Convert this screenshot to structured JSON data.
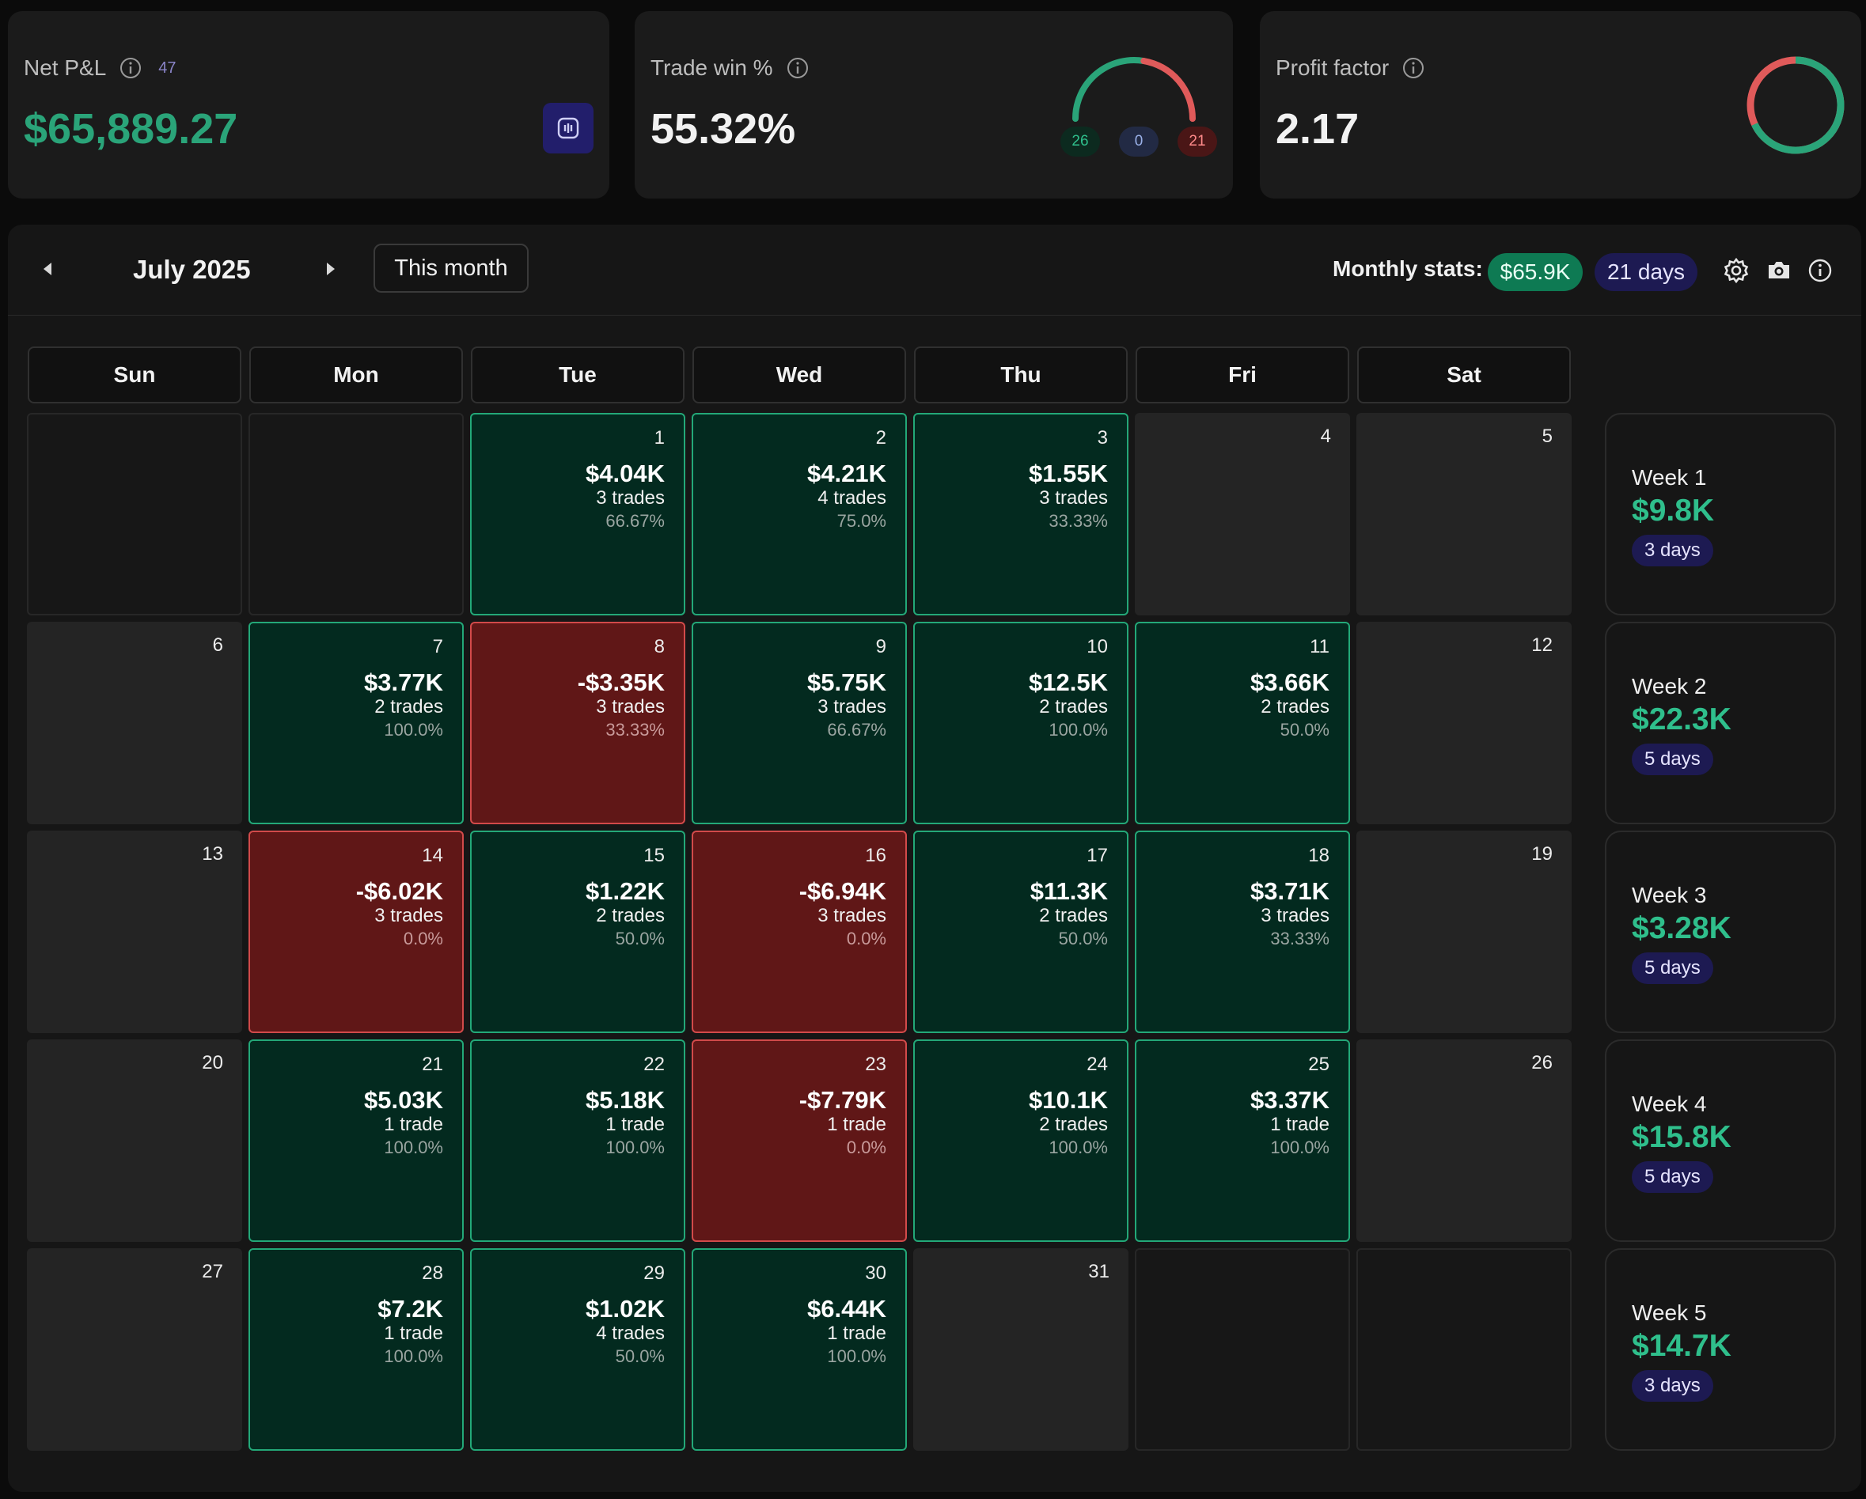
{
  "net_pnl": {
    "title": "Net P&L",
    "count": "47",
    "value": "$65,889.27"
  },
  "trade_win": {
    "title": "Trade win %",
    "value": "55.32%",
    "wins": "26",
    "breakeven": "0",
    "losses": "21",
    "win_fraction": 0.5532,
    "colors": {
      "win": "#2aa479",
      "loss": "#e05a5a",
      "neutral": "#2c2c3a"
    }
  },
  "profit_factor": {
    "title": "Profit factor",
    "value": "2.17",
    "gross_profit_fraction": 0.68
  },
  "calendar": {
    "month_label": "July 2025",
    "this_month_label": "This month",
    "monthly_stats_label": "Monthly stats:",
    "monthly_pnl": "$65.9K",
    "monthly_days": "21 days",
    "weekdays": [
      "Sun",
      "Mon",
      "Tue",
      "Wed",
      "Thu",
      "Fri",
      "Sat"
    ],
    "weeks": [
      {
        "label": "Week 1",
        "value": "$9.8K",
        "days": "3 days",
        "cells": [
          {
            "type": "empty"
          },
          {
            "type": "empty"
          },
          {
            "type": "profit",
            "day": "1",
            "pnl": "$4.04K",
            "trades": "3 trades",
            "pct": "66.67%"
          },
          {
            "type": "profit",
            "day": "2",
            "pnl": "$4.21K",
            "trades": "4 trades",
            "pct": "75.0%"
          },
          {
            "type": "profit",
            "day": "3",
            "pnl": "$1.55K",
            "trades": "3 trades",
            "pct": "33.33%"
          },
          {
            "type": "noday",
            "day": "4"
          },
          {
            "type": "noday",
            "day": "5"
          }
        ]
      },
      {
        "label": "Week 2",
        "value": "$22.3K",
        "days": "5 days",
        "cells": [
          {
            "type": "noday",
            "day": "6"
          },
          {
            "type": "profit",
            "day": "7",
            "pnl": "$3.77K",
            "trades": "2 trades",
            "pct": "100.0%"
          },
          {
            "type": "loss",
            "day": "8",
            "pnl": "-$3.35K",
            "trades": "3 trades",
            "pct": "33.33%"
          },
          {
            "type": "profit",
            "day": "9",
            "pnl": "$5.75K",
            "trades": "3 trades",
            "pct": "66.67%"
          },
          {
            "type": "profit",
            "day": "10",
            "pnl": "$12.5K",
            "trades": "2 trades",
            "pct": "100.0%"
          },
          {
            "type": "profit",
            "day": "11",
            "pnl": "$3.66K",
            "trades": "2 trades",
            "pct": "50.0%"
          },
          {
            "type": "noday",
            "day": "12"
          }
        ]
      },
      {
        "label": "Week 3",
        "value": "$3.28K",
        "days": "5 days",
        "cells": [
          {
            "type": "noday",
            "day": "13"
          },
          {
            "type": "loss",
            "day": "14",
            "pnl": "-$6.02K",
            "trades": "3 trades",
            "pct": "0.0%"
          },
          {
            "type": "profit",
            "day": "15",
            "pnl": "$1.22K",
            "trades": "2 trades",
            "pct": "50.0%"
          },
          {
            "type": "loss",
            "day": "16",
            "pnl": "-$6.94K",
            "trades": "3 trades",
            "pct": "0.0%"
          },
          {
            "type": "profit",
            "day": "17",
            "pnl": "$11.3K",
            "trades": "2 trades",
            "pct": "50.0%"
          },
          {
            "type": "profit",
            "day": "18",
            "pnl": "$3.71K",
            "trades": "3 trades",
            "pct": "33.33%"
          },
          {
            "type": "noday",
            "day": "19"
          }
        ]
      },
      {
        "label": "Week 4",
        "value": "$15.8K",
        "days": "5 days",
        "cells": [
          {
            "type": "noday",
            "day": "20"
          },
          {
            "type": "profit",
            "day": "21",
            "pnl": "$5.03K",
            "trades": "1 trade",
            "pct": "100.0%"
          },
          {
            "type": "profit",
            "day": "22",
            "pnl": "$5.18K",
            "trades": "1 trade",
            "pct": "100.0%"
          },
          {
            "type": "loss",
            "day": "23",
            "pnl": "-$7.79K",
            "trades": "1 trade",
            "pct": "0.0%"
          },
          {
            "type": "profit",
            "day": "24",
            "pnl": "$10.1K",
            "trades": "2 trades",
            "pct": "100.0%"
          },
          {
            "type": "profit",
            "day": "25",
            "pnl": "$3.37K",
            "trades": "1 trade",
            "pct": "100.0%"
          },
          {
            "type": "noday",
            "day": "26"
          }
        ]
      },
      {
        "label": "Week 5",
        "value": "$14.7K",
        "days": "3 days",
        "cells": [
          {
            "type": "noday",
            "day": "27"
          },
          {
            "type": "profit",
            "day": "28",
            "pnl": "$7.2K",
            "trades": "1 trade",
            "pct": "100.0%"
          },
          {
            "type": "profit",
            "day": "29",
            "pnl": "$1.02K",
            "trades": "4 trades",
            "pct": "50.0%"
          },
          {
            "type": "profit",
            "day": "30",
            "pnl": "$6.44K",
            "trades": "1 trade",
            "pct": "100.0%"
          },
          {
            "type": "noday",
            "day": "31"
          },
          {
            "type": "empty"
          },
          {
            "type": "empty"
          }
        ]
      }
    ]
  }
}
